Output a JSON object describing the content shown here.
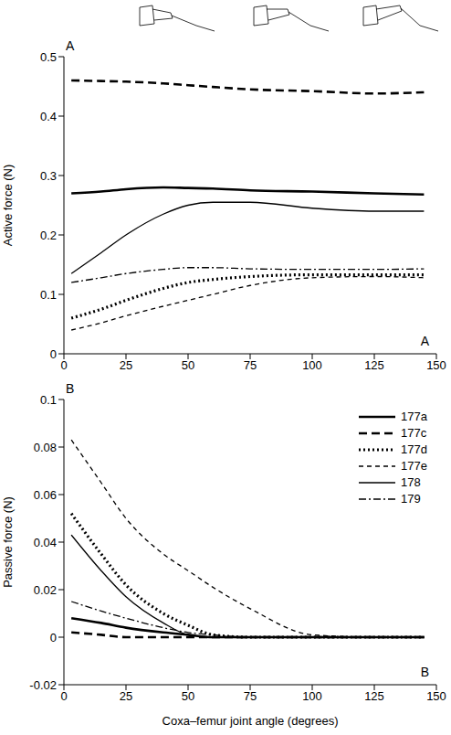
{
  "chart_data": [
    {
      "type": "line",
      "panel_label": "A",
      "y_label": "Active force (N)",
      "xlim": [
        0,
        150
      ],
      "xticks": [
        0,
        25,
        50,
        75,
        100,
        125,
        150
      ],
      "ylim": [
        0,
        0.5
      ],
      "yticks": [
        0,
        0.1,
        0.2,
        0.3,
        0.4,
        0.5
      ],
      "grid": false,
      "x": [
        3,
        15,
        25,
        40,
        50,
        60,
        75,
        100,
        125,
        145
      ],
      "series": [
        {
          "name": "177a",
          "color": "#000000",
          "line_style": "solid",
          "values": [
            0.27,
            0.273,
            0.277,
            0.28,
            0.279,
            0.278,
            0.275,
            0.273,
            0.27,
            0.268
          ]
        },
        {
          "name": "177c",
          "color": "#000000",
          "line_style": "dashed",
          "values": [
            0.46,
            0.459,
            0.458,
            0.455,
            0.452,
            0.449,
            0.445,
            0.442,
            0.438,
            0.44
          ]
        },
        {
          "name": "177d",
          "color": "#000000",
          "line_style": "dotted",
          "values": [
            0.06,
            0.075,
            0.09,
            0.11,
            0.12,
            0.125,
            0.13,
            0.133,
            0.133,
            0.133
          ]
        },
        {
          "name": "177e",
          "color": "#000000",
          "line_style": "dashed",
          "values": [
            0.04,
            0.052,
            0.064,
            0.08,
            0.09,
            0.1,
            0.115,
            0.128,
            0.13,
            0.128
          ]
        },
        {
          "name": "178",
          "color": "#000000",
          "line_style": "solid",
          "values": [
            0.135,
            0.17,
            0.2,
            0.235,
            0.25,
            0.255,
            0.255,
            0.245,
            0.24,
            0.24
          ]
        },
        {
          "name": "179",
          "color": "#000000",
          "line_style": "dashdot",
          "values": [
            0.12,
            0.128,
            0.135,
            0.142,
            0.145,
            0.145,
            0.143,
            0.142,
            0.142,
            0.143
          ]
        }
      ]
    },
    {
      "type": "line",
      "panel_label": "B",
      "y_label": "Passive force (N)",
      "x_label": "Coxa–femur joint angle (degrees)",
      "xlim": [
        0,
        150
      ],
      "xticks": [
        0,
        25,
        50,
        75,
        100,
        125,
        150
      ],
      "ylim": [
        -0.02,
        0.1
      ],
      "yticks": [
        -0.02,
        0,
        0.02,
        0.04,
        0.06,
        0.08,
        0.1
      ],
      "grid": false,
      "legend": "upper right",
      "x": [
        3,
        15,
        25,
        40,
        50,
        60,
        75,
        100,
        125,
        145
      ],
      "series": [
        {
          "name": "177a",
          "color": "#000000",
          "line_style": "solid",
          "values": [
            0.008,
            0.006,
            0.004,
            0.002,
            0.001,
            0,
            0,
            0,
            0,
            0
          ]
        },
        {
          "name": "177c",
          "color": "#000000",
          "line_style": "dashed",
          "values": [
            0.002,
            0.001,
            0,
            0,
            0,
            0,
            0,
            0,
            0,
            0
          ]
        },
        {
          "name": "177d",
          "color": "#000000",
          "line_style": "dotted",
          "values": [
            0.052,
            0.035,
            0.022,
            0.01,
            0.005,
            0.001,
            0,
            0,
            0,
            0
          ]
        },
        {
          "name": "177e",
          "color": "#000000",
          "line_style": "dashed",
          "values": [
            0.083,
            0.065,
            0.05,
            0.035,
            0.028,
            0.021,
            0.012,
            0.001,
            0,
            0
          ]
        },
        {
          "name": "178",
          "color": "#000000",
          "line_style": "solid",
          "values": [
            0.043,
            0.028,
            0.017,
            0.006,
            0.001,
            0,
            0,
            0,
            0,
            0
          ]
        },
        {
          "name": "179",
          "color": "#000000",
          "line_style": "dashdot",
          "values": [
            0.015,
            0.011,
            0.008,
            0.004,
            0.002,
            0.001,
            0,
            0,
            0,
            0
          ]
        }
      ]
    }
  ]
}
